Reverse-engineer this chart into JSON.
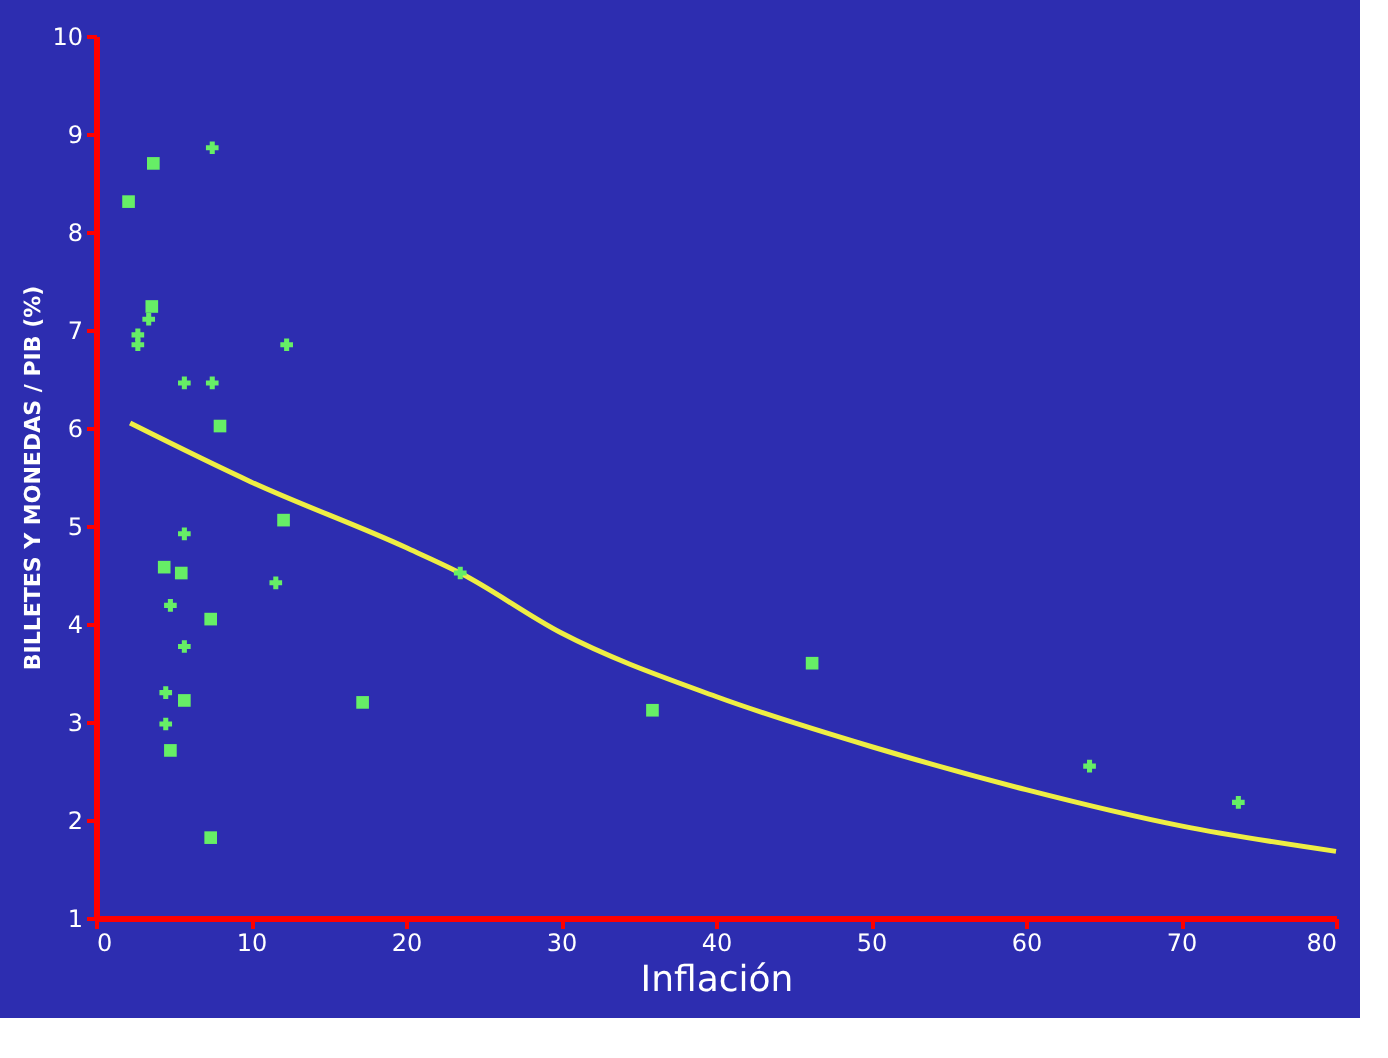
{
  "chart_data": {
    "type": "scatter",
    "xlabel": "Inflación",
    "ylabel": "BILLETES Y MONEDAS / PIB (%)",
    "xlim": [
      0,
      80
    ],
    "xticks": [
      0,
      10,
      20,
      30,
      40,
      50,
      60,
      70,
      80
    ],
    "ylim": [
      1,
      10
    ],
    "yticks": [
      1,
      2,
      3,
      4,
      5,
      6,
      7,
      8,
      9,
      10
    ],
    "grid": false,
    "series": [
      {
        "color": "#66ee66",
        "marker": "cross",
        "x": [
          7.5,
          3.4,
          2.7,
          2.7,
          12.3,
          5.7,
          7.5,
          5.7,
          11.6,
          4.8,
          5.7,
          4.5,
          4.5,
          23.5,
          64.1,
          73.7
        ],
        "values": [
          8.86,
          7.11,
          6.95,
          6.85,
          6.85,
          6.46,
          6.46,
          4.92,
          4.42,
          4.19,
          3.77,
          3.3,
          2.98,
          4.52,
          2.55,
          2.18
        ]
      },
      {
        "color": "#66ee66",
        "marker": "square",
        "x": [
          3.7,
          2.1,
          3.6,
          8.0,
          12.1,
          4.4,
          5.5,
          7.4,
          5.7,
          17.2,
          4.8,
          7.4,
          35.9,
          46.2
        ],
        "values": [
          8.7,
          8.31,
          7.24,
          6.02,
          5.06,
          4.58,
          4.52,
          4.05,
          3.22,
          3.2,
          2.71,
          1.82,
          3.12,
          3.6
        ]
      },
      {
        "type": "line",
        "color": "#eeee44",
        "marker": "none",
        "line_style": "solid",
        "x": [
          2.2,
          10,
          20,
          23.5,
          30,
          40,
          50,
          60,
          70,
          80
        ],
        "values": [
          6.05,
          5.45,
          4.78,
          4.52,
          3.91,
          3.26,
          2.75,
          2.31,
          1.94,
          1.68
        ]
      }
    ]
  }
}
